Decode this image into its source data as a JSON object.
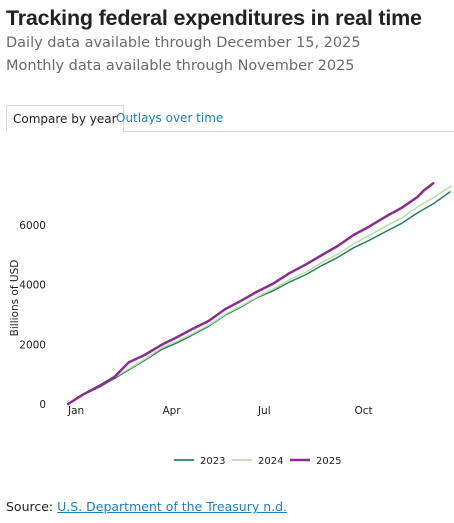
{
  "header": {
    "title": "Tracking federal expenditures in real time",
    "subtitle_daily": "Daily data available through December 15, 2025",
    "subtitle_monthly": "Monthly data available through November 2025"
  },
  "tabs": [
    {
      "label": "Compare by year",
      "active": true
    },
    {
      "label": "Outlays over time",
      "active": false
    }
  ],
  "chart_data": {
    "type": "line",
    "ylabel": "Billions of USD",
    "xlabel": "",
    "x_ticks": [
      "Jan",
      "Apr",
      "Jul",
      "Oct"
    ],
    "x_tick_days": [
      1,
      91,
      182,
      274
    ],
    "y_ticks": [
      0,
      2000,
      4000,
      6000
    ],
    "xlim_days": [
      1,
      365
    ],
    "ylim": [
      0,
      7500
    ],
    "grid": false,
    "legend_position": "bottom",
    "series": [
      {
        "name": "2023",
        "color": "#2c7d68",
        "points": [
          [
            1,
            0
          ],
          [
            15,
            300
          ],
          [
            31,
            570
          ],
          [
            45,
            850
          ],
          [
            59,
            1150
          ],
          [
            74,
            1460
          ],
          [
            90,
            1820
          ],
          [
            105,
            2050
          ],
          [
            120,
            2320
          ],
          [
            135,
            2600
          ],
          [
            151,
            2980
          ],
          [
            166,
            3250
          ],
          [
            181,
            3560
          ],
          [
            196,
            3780
          ],
          [
            212,
            4080
          ],
          [
            227,
            4320
          ],
          [
            243,
            4640
          ],
          [
            258,
            4910
          ],
          [
            273,
            5230
          ],
          [
            288,
            5480
          ],
          [
            304,
            5780
          ],
          [
            319,
            6050
          ],
          [
            334,
            6400
          ],
          [
            349,
            6700
          ],
          [
            365,
            7100
          ]
        ]
      },
      {
        "name": "2024",
        "color": "#b6e0a6",
        "points": [
          [
            1,
            0
          ],
          [
            15,
            310
          ],
          [
            31,
            600
          ],
          [
            45,
            890
          ],
          [
            60,
            1200
          ],
          [
            75,
            1520
          ],
          [
            91,
            1900
          ],
          [
            106,
            2120
          ],
          [
            121,
            2380
          ],
          [
            136,
            2660
          ],
          [
            152,
            3030
          ],
          [
            167,
            3300
          ],
          [
            182,
            3600
          ],
          [
            197,
            3860
          ],
          [
            213,
            4180
          ],
          [
            228,
            4420
          ],
          [
            244,
            4760
          ],
          [
            259,
            5040
          ],
          [
            274,
            5380
          ],
          [
            289,
            5660
          ],
          [
            305,
            5980
          ],
          [
            320,
            6250
          ],
          [
            335,
            6620
          ],
          [
            350,
            6930
          ],
          [
            366,
            7300
          ]
        ]
      },
      {
        "name": "2025",
        "color": "#8a2d8e",
        "points": [
          [
            1,
            0
          ],
          [
            15,
            310
          ],
          [
            31,
            610
          ],
          [
            45,
            900
          ],
          [
            59,
            1400
          ],
          [
            74,
            1640
          ],
          [
            90,
            1980
          ],
          [
            105,
            2240
          ],
          [
            120,
            2520
          ],
          [
            135,
            2780
          ],
          [
            151,
            3180
          ],
          [
            166,
            3460
          ],
          [
            181,
            3760
          ],
          [
            196,
            4020
          ],
          [
            212,
            4380
          ],
          [
            227,
            4660
          ],
          [
            243,
            4990
          ],
          [
            258,
            5290
          ],
          [
            273,
            5660
          ],
          [
            288,
            5940
          ],
          [
            304,
            6280
          ],
          [
            319,
            6570
          ],
          [
            334,
            6930
          ],
          [
            340,
            7150
          ],
          [
            349,
            7390
          ]
        ]
      }
    ]
  },
  "source": {
    "prefix": "Source: ",
    "link_text": "U.S. Department of the Treasury n.d."
  }
}
